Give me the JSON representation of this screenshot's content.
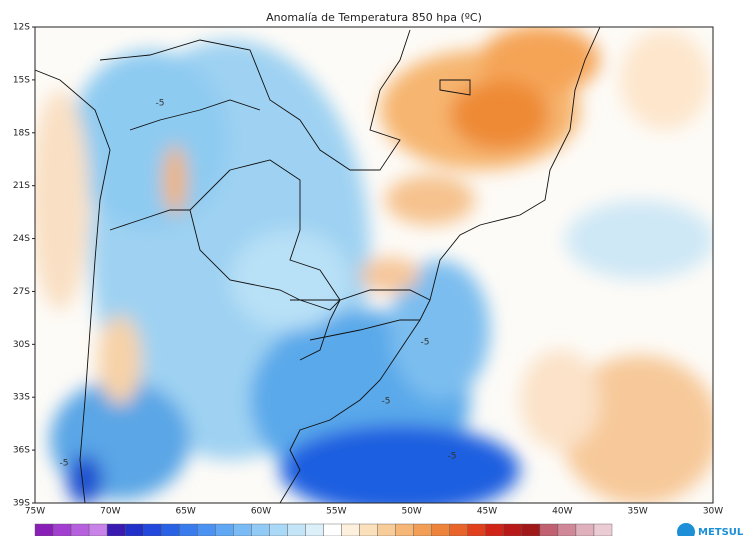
{
  "map": {
    "title": "Anomalía de Temperatura 850 hpa (ºC)",
    "lat_labels": [
      "12S",
      "15S",
      "18S",
      "21S",
      "24S",
      "27S",
      "30S",
      "33S",
      "36S",
      "39S"
    ],
    "lon_labels": [
      "75W",
      "70W",
      "65W",
      "60W",
      "55W",
      "50W",
      "45W",
      "40W",
      "35W",
      "30W"
    ],
    "contour_labels": [
      "-5",
      "-5",
      "-5",
      "-5",
      "-5"
    ],
    "logo": "METSUL"
  }
}
